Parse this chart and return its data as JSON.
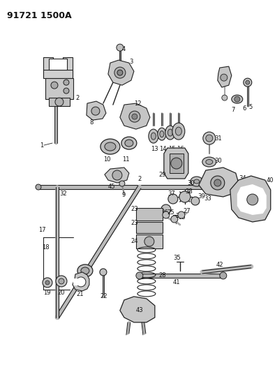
{
  "title": "91721 1500A",
  "bg_color": "#ffffff",
  "line_color": "#222222",
  "text_color": "#111111",
  "fig_width": 3.94,
  "fig_height": 5.33,
  "dpi": 100
}
